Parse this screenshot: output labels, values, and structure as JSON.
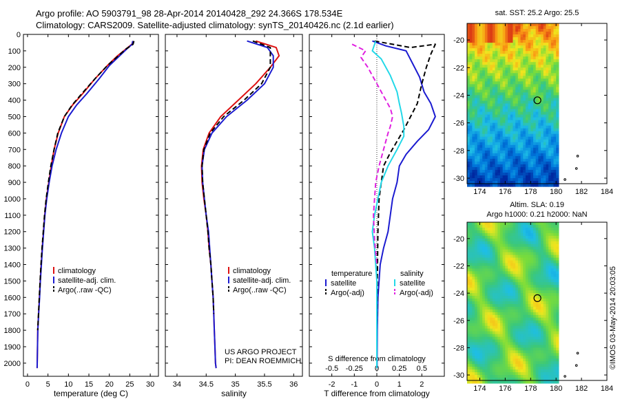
{
  "header": {
    "title_line1": "Argo profile: AO 5903791_98 28-Apr-2014 20140428_292 24.366S 178.534E",
    "title_line2": "Climatology: CARS2009. Satellite-adjusted climatology: synTS_20140426.nc (2.1d earlier)"
  },
  "colors": {
    "climatology": "#dd1111",
    "satellite": "#1a1ad0",
    "argo": "#000000",
    "argo_salinity": "#e020e0",
    "satellite_salinity": "#22d8e8"
  },
  "chart_data": [
    {
      "type": "line",
      "id": "temperature",
      "xlabel": "temperature (deg C)",
      "ylabel": "",
      "xlim": [
        -1,
        32
      ],
      "ylim": [
        2080,
        0
      ],
      "xticks": [
        0,
        5,
        10,
        15,
        20,
        25,
        30
      ],
      "yticks": [
        0,
        100,
        200,
        300,
        400,
        500,
        600,
        700,
        800,
        900,
        1000,
        1100,
        1200,
        1300,
        1400,
        1500,
        1600,
        1700,
        1800,
        1900,
        2000
      ],
      "legend": [
        "climatology",
        "satellite-adj. clim.",
        "Argo(..raw -QC)"
      ],
      "legend_position": "lower-center",
      "series": [
        {
          "name": "climatology",
          "color": "#dd1111",
          "x": [
            25.8,
            25.5,
            24,
            22,
            19.5,
            16.5,
            13.5,
            11,
            9,
            7.5,
            6.5,
            5.8,
            5.2,
            4.6,
            4.2,
            3.9,
            3.6,
            3.35,
            3.1,
            2.9,
            2.7,
            2.5,
            2.35
          ],
          "y": [
            40,
            60,
            90,
            130,
            190,
            270,
            360,
            430,
            500,
            600,
            700,
            800,
            900,
            1000,
            1100,
            1200,
            1300,
            1400,
            1500,
            1600,
            1700,
            1800,
            2030
          ]
        },
        {
          "name": "satellite-adj. clim.",
          "color": "#1a1ad0",
          "x": [
            25.7,
            25.6,
            24.2,
            22.5,
            20,
            17.5,
            14.5,
            12,
            10,
            8.3,
            7,
            6,
            5.3,
            4.7,
            4.25,
            3.95,
            3.65,
            3.4,
            3.15,
            2.95,
            2.72,
            2.52,
            2.35
          ],
          "y": [
            40,
            60,
            90,
            130,
            190,
            270,
            360,
            430,
            500,
            600,
            700,
            800,
            900,
            1000,
            1100,
            1200,
            1300,
            1400,
            1500,
            1600,
            1700,
            1800,
            2030
          ]
        },
        {
          "name": "Argo(..raw -QC)",
          "color": "#000000",
          "dashed": true,
          "x": [
            26,
            25.8,
            24,
            22.2,
            19.5,
            16.5,
            13.3,
            10.9,
            9,
            7.4,
            6.5,
            5.7,
            5.1,
            4.55,
            4.15,
            3.85,
            3.55,
            3.3,
            3.08,
            2.88,
            2.68,
            2.48
          ],
          "y": [
            40,
            60,
            90,
            130,
            190,
            270,
            360,
            430,
            500,
            600,
            700,
            800,
            900,
            1000,
            1100,
            1200,
            1300,
            1400,
            1500,
            1600,
            1700,
            1800
          ]
        }
      ]
    },
    {
      "type": "line",
      "id": "salinity",
      "xlabel": "salinity",
      "ylabel": "",
      "xlim": [
        33.8,
        36.15
      ],
      "ylim": [
        2080,
        0
      ],
      "xticks": [
        34,
        34.5,
        35,
        35.5,
        36
      ],
      "yticks": [
        0,
        100,
        200,
        300,
        400,
        500,
        600,
        700,
        800,
        900,
        1000,
        1100,
        1200,
        1300,
        1400,
        1500,
        1600,
        1700,
        1800,
        1900,
        2000
      ],
      "legend": [
        "climatology",
        "satellite-adj. clim.",
        "Argo(..raw -QC)"
      ],
      "legend_position": "lower-right",
      "annotation": [
        "US ARGO PROJECT",
        "PI: DEAN ROEMMICH"
      ],
      "series": [
        {
          "name": "climatology",
          "color": "#dd1111",
          "x": [
            35.35,
            35.7,
            35.75,
            35.6,
            35.35,
            35.05,
            34.75,
            34.55,
            34.45,
            34.42,
            34.43,
            34.46,
            34.5,
            34.53,
            34.55,
            34.58,
            34.6,
            34.62,
            34.63,
            34.64,
            34.65,
            34.66,
            34.67
          ],
          "y": [
            40,
            80,
            130,
            200,
            300,
            400,
            500,
            600,
            700,
            800,
            900,
            1000,
            1100,
            1200,
            1300,
            1400,
            1500,
            1600,
            1700,
            1800,
            1900,
            2000,
            2030
          ]
        },
        {
          "name": "satellite-adj. clim.",
          "color": "#1a1ad0",
          "x": [
            35.2,
            35.55,
            35.65,
            35.65,
            35.5,
            35.2,
            34.85,
            34.6,
            34.47,
            34.43,
            34.44,
            34.47,
            34.5,
            34.54,
            34.56,
            34.58,
            34.6,
            34.62,
            34.63,
            34.64,
            34.65,
            34.66,
            34.67
          ],
          "y": [
            40,
            80,
            130,
            200,
            300,
            400,
            500,
            600,
            700,
            800,
            900,
            1000,
            1100,
            1200,
            1300,
            1400,
            1500,
            1600,
            1700,
            1800,
            1900,
            2000,
            2030
          ]
        },
        {
          "name": "Argo(..raw -QC)",
          "color": "#000000",
          "dashed": true,
          "x": [
            35.3,
            35.6,
            35.6,
            35.6,
            35.45,
            35.15,
            34.8,
            34.57,
            34.46,
            34.43,
            34.44,
            34.47,
            34.5,
            34.53,
            34.55,
            34.58,
            34.6,
            34.62,
            34.63
          ],
          "y": [
            40,
            80,
            130,
            200,
            300,
            400,
            500,
            600,
            700,
            800,
            900,
            1000,
            1100,
            1200,
            1300,
            1400,
            1500,
            1600,
            1700
          ]
        }
      ]
    },
    {
      "type": "line",
      "id": "difference",
      "xlabel": "T difference from climatology",
      "ylabel": "",
      "xlabel_top": "S difference from climatology",
      "xlim": [
        -3,
        3
      ],
      "ylim": [
        2080,
        0
      ],
      "xticks": [
        -2,
        -1,
        0,
        1,
        2
      ],
      "xticks_s": [
        -0.5,
        -0.25,
        0,
        0.25,
        0.5
      ],
      "yticks": [
        0,
        100,
        200,
        300,
        400,
        500,
        600,
        700,
        800,
        900,
        1000,
        1100,
        1200,
        1300,
        1400,
        1500,
        1600,
        1700,
        1800,
        1900,
        2000
      ],
      "legend_groups": [
        "temperature",
        "salinity"
      ],
      "legend": [
        "satellite",
        "Argo(-adj)",
        "satellite",
        "Argo(-adj)"
      ],
      "legend_position": "lower-center",
      "series": [
        {
          "name": "satellite",
          "group": "temperature",
          "color": "#1a1ad0",
          "x": [
            -0.2,
            0.4,
            1.3,
            1.6,
            1.9,
            2.1,
            2.4,
            2.6,
            2.3,
            1.8,
            1.3,
            1.0,
            0.9,
            0.7,
            0.6,
            0.5,
            0.3,
            0.15,
            0.05,
            0.02,
            0.01
          ],
          "y": [
            40,
            70,
            100,
            180,
            260,
            350,
            420,
            500,
            580,
            650,
            730,
            800,
            900,
            1000,
            1100,
            1200,
            1300,
            1400,
            1600,
            1800,
            2030
          ]
        },
        {
          "name": "Argo(-adj)",
          "group": "temperature",
          "color": "#000000",
          "dashed": true,
          "x": [
            -0.1,
            1.5,
            2.6,
            2.4,
            2.2,
            2.0,
            1.8,
            1.5,
            1.2,
            0.9,
            0.6,
            0.3,
            0.2,
            0.1,
            0.05,
            0.02,
            0.0
          ],
          "y": [
            40,
            80,
            60,
            120,
            200,
            300,
            420,
            500,
            580,
            650,
            720,
            800,
            900,
            1000,
            1200,
            1500,
            1800
          ]
        },
        {
          "name": "satellite",
          "group": "salinity",
          "color": "#22d8e8",
          "x": [
            -0.05,
            -0.2,
            0.2,
            0.6,
            0.9,
            1.0,
            1.1,
            1.2,
            1.2,
            0.9,
            0.5,
            0.2,
            0.05,
            -0.1,
            -0.2,
            -0.1,
            0.0,
            0.0
          ],
          "y": [
            40,
            100,
            150,
            250,
            350,
            420,
            480,
            560,
            620,
            700,
            800,
            900,
            1000,
            1100,
            1200,
            1300,
            1500,
            2030
          ]
        },
        {
          "name": "Argo(-adj)",
          "group": "salinity",
          "color": "#e020e0",
          "dashed": true,
          "x": [
            -1.1,
            -0.5,
            -0.7,
            -0.4,
            0.0,
            0.4,
            0.6,
            0.7,
            0.6,
            0.5,
            0.3,
            0.1,
            -0.05,
            -0.1,
            -0.15,
            -0.1,
            0.0
          ],
          "y": [
            60,
            100,
            140,
            200,
            300,
            400,
            450,
            500,
            560,
            600,
            700,
            800,
            900,
            1000,
            1100,
            1250,
            1400
          ]
        }
      ]
    },
    {
      "type": "heatmap",
      "id": "sst_map",
      "title": "sat. SST: 25.2 Argo: 25.5",
      "xlim": [
        173,
        184
      ],
      "ylim": [
        -30.4,
        -18.8
      ],
      "xticks": [
        174,
        176,
        178,
        180,
        182,
        184
      ],
      "yticks": [
        -20,
        -22,
        -24,
        -26,
        -28,
        -30
      ],
      "data_extent_lon": [
        173,
        180
      ],
      "data_extent_lat": [
        -30.4,
        -18.8
      ],
      "profile_position": [
        178.534,
        -24.366
      ]
    },
    {
      "type": "heatmap",
      "id": "sla_map",
      "title": "Altim. SLA: 0.19",
      "subtitle": "Argo h1000: 0.21 h2000: NaN",
      "xlim": [
        173,
        184
      ],
      "ylim": [
        -30.4,
        -18.8
      ],
      "xticks": [
        174,
        176,
        178,
        180,
        182,
        184
      ],
      "yticks": [
        -20,
        -22,
        -24,
        -26,
        -28,
        -30
      ],
      "data_extent_lon": [
        173,
        180
      ],
      "data_extent_lat": [
        -30.4,
        -18.8
      ],
      "profile_position": [
        178.534,
        -24.366
      ]
    }
  ],
  "stamp": "©IMOS 03-May-2014 20:03:05"
}
